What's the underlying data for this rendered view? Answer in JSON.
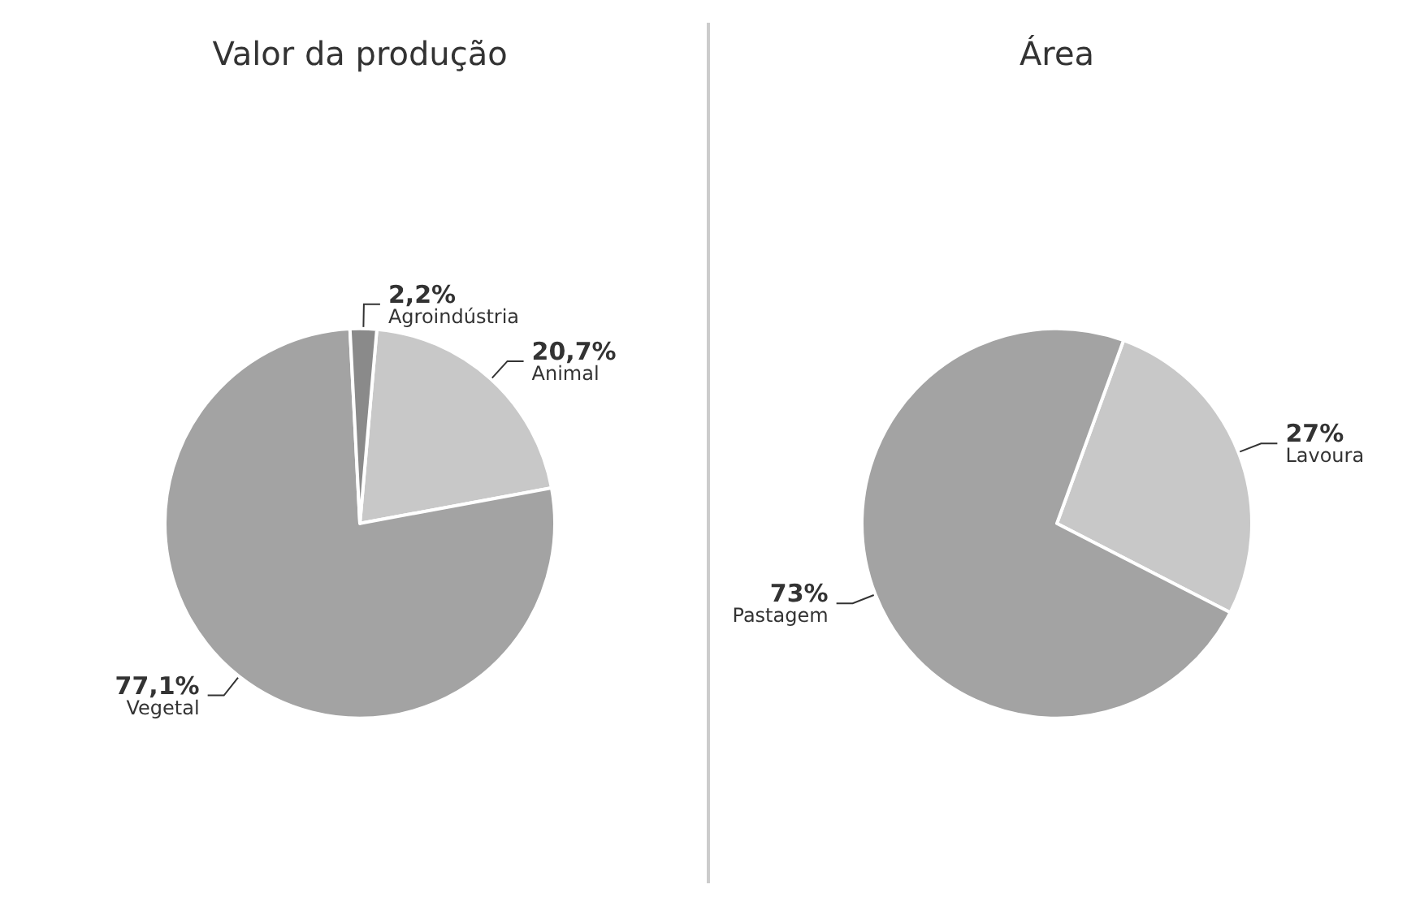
{
  "chart_data": [
    {
      "type": "pie",
      "title": "Valor da produção",
      "categories": [
        "Animal",
        "Vegetal",
        "Agroindústria"
      ],
      "values": [
        20.7,
        77.1,
        2.2
      ],
      "colors": [
        "#c8c8c8",
        "#a3a3a3",
        "#8a8a8a"
      ],
      "value_labels": [
        "20,7%",
        "77,1%",
        "2,2%"
      ]
    },
    {
      "type": "pie",
      "title": "Área",
      "categories": [
        "Lavoura",
        "Pastagem"
      ],
      "values": [
        27,
        73
      ],
      "colors": [
        "#c8c8c8",
        "#a3a3a3"
      ],
      "value_labels": [
        "27%",
        "73%"
      ]
    }
  ]
}
